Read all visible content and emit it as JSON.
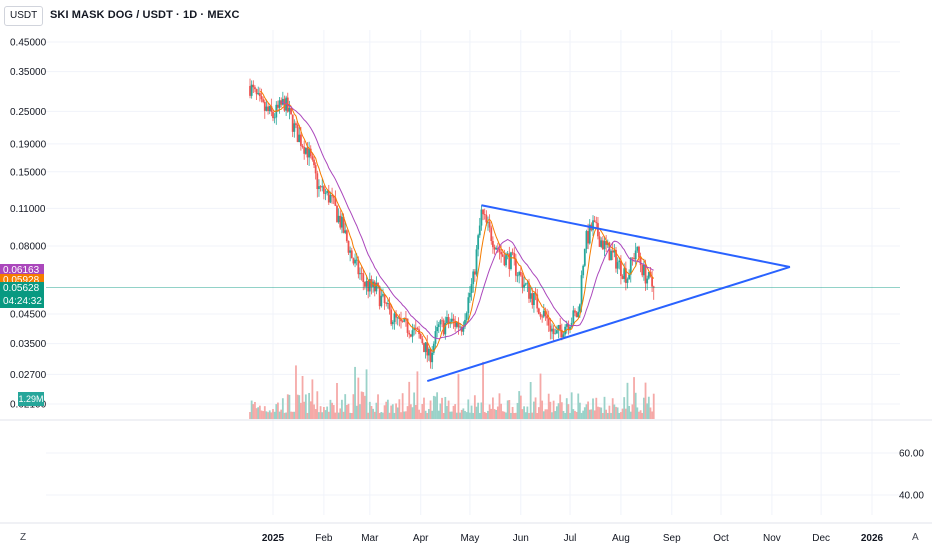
{
  "header": {
    "quote_currency": "USDT",
    "title": "SKI MASK DOG / USDT · 1D · MEXC"
  },
  "price_tags": {
    "ma_slow": {
      "value": "0.06163",
      "color": "#ab47bc"
    },
    "ma_fast": {
      "value": "0.05928",
      "color": "#f57c00"
    },
    "last_price": {
      "value": "0.05628",
      "color": "#089981"
    },
    "countdown": "04:24:32"
  },
  "volume_badge": "1.29M",
  "footer": {
    "timezone": "Z",
    "scale_mode": "A"
  },
  "colors": {
    "up": "#26a69a",
    "down": "#ef5350",
    "ma_fast": "#f57c00",
    "ma_slow": "#ab47bc",
    "trendline": "#2962ff",
    "vol_up": "#9ad2c9",
    "vol_down": "#f5a9a7"
  },
  "chart_data": {
    "type": "candlestick",
    "y_axis": {
      "scale": "log",
      "ticks": [
        "0.45000",
        "0.35000",
        "0.25000",
        "0.19000",
        "0.15000",
        "0.11000",
        "0.08000",
        "0.04500",
        "0.03500",
        "0.02700",
        "0.02100"
      ],
      "position": "left"
    },
    "x_axis": {
      "labels": [
        "2025",
        "Feb",
        "Mar",
        "Apr",
        "May",
        "Jun",
        "Jul",
        "Aug",
        "Sep",
        "Oct",
        "Nov",
        "Dec",
        "2026"
      ],
      "label_dates": [
        "2025-01-01",
        "2025-02-01",
        "2025-03-01",
        "2025-04-01",
        "2025-05-01",
        "2025-06-01",
        "2025-07-01",
        "2025-08-01",
        "2025-09-01",
        "2025-10-01",
        "2025-11-01",
        "2025-12-01",
        "2026-01-01"
      ]
    },
    "close_series": {
      "name": "close (approx.)",
      "dates": [
        "2024-12-18",
        "2024-12-25",
        "2025-01-01",
        "2025-01-08",
        "2025-01-15",
        "2025-01-22",
        "2025-01-29",
        "2025-02-05",
        "2025-02-12",
        "2025-02-19",
        "2025-02-26",
        "2025-03-05",
        "2025-03-12",
        "2025-03-19",
        "2025-03-26",
        "2025-04-02",
        "2025-04-06",
        "2025-04-12",
        "2025-04-19",
        "2025-04-26",
        "2025-05-03",
        "2025-05-08",
        "2025-05-13",
        "2025-05-20",
        "2025-05-27",
        "2025-06-03",
        "2025-06-10",
        "2025-06-17",
        "2025-06-22",
        "2025-06-29",
        "2025-07-06",
        "2025-07-10",
        "2025-07-15",
        "2025-07-22",
        "2025-07-29",
        "2025-08-05",
        "2025-08-10",
        "2025-08-15",
        "2025-08-21"
      ],
      "values": [
        0.31,
        0.26,
        0.24,
        0.27,
        0.21,
        0.18,
        0.13,
        0.12,
        0.095,
        0.07,
        0.058,
        0.055,
        0.046,
        0.041,
        0.04,
        0.036,
        0.031,
        0.04,
        0.042,
        0.041,
        0.06,
        0.105,
        0.09,
        0.075,
        0.07,
        0.058,
        0.05,
        0.043,
        0.037,
        0.042,
        0.045,
        0.082,
        0.095,
        0.08,
        0.071,
        0.062,
        0.078,
        0.064,
        0.056
      ]
    },
    "volume_series": {
      "name": "Volume",
      "unit": "M",
      "last_value": 1.29
    },
    "annotations": [
      {
        "type": "trendline",
        "name": "upper-line",
        "from": {
          "date": "2025-05-08",
          "price": 0.113
        },
        "to": {
          "date": "2025-11-12",
          "price": 0.067
        }
      },
      {
        "type": "trendline",
        "name": "lower-line",
        "from": {
          "date": "2025-04-05",
          "price": 0.0255
        },
        "to": {
          "date": "2025-11-12",
          "price": 0.067
        }
      }
    ],
    "oscillator": {
      "ticks": [
        "60.00",
        "40.00"
      ],
      "position": "right"
    },
    "horizontal_line": {
      "price": 0.05628,
      "color": "#089981"
    }
  }
}
